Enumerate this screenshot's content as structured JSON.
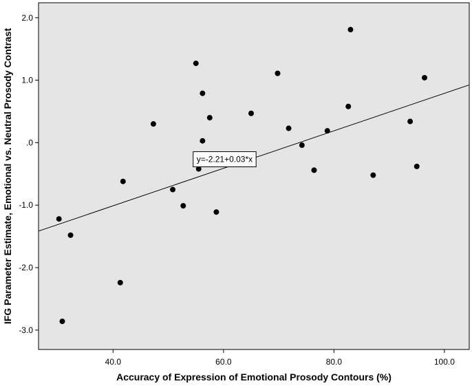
{
  "chart_data": {
    "type": "scatter",
    "xlabel": "Accuracy of Expression of Emotional Prosody Contours (%)",
    "ylabel": "IFG Parameter Estimate, Emotional vs. Neutral Prosody Contrast",
    "xlim": [
      26.5,
      104.5
    ],
    "ylim": [
      -3.31,
      2.24
    ],
    "x_ticks": [
      40,
      60,
      80,
      100
    ],
    "x_tick_labels": [
      "40.0",
      "60.0",
      "80.0",
      "100.0"
    ],
    "y_ticks": [
      2,
      1,
      0,
      -1,
      -2,
      -3
    ],
    "y_tick_labels": [
      "2.0",
      "1.0",
      ".0",
      "-1.0",
      "-2.0",
      "-3.0"
    ],
    "grid": false,
    "background": "#e5e5e5",
    "point_color": "#000000",
    "points": [
      {
        "x": 30.2,
        "y": -1.22
      },
      {
        "x": 30.8,
        "y": -2.86
      },
      {
        "x": 32.3,
        "y": -1.48
      },
      {
        "x": 41.3,
        "y": -2.24
      },
      {
        "x": 41.8,
        "y": -0.62
      },
      {
        "x": 47.3,
        "y": 0.3
      },
      {
        "x": 50.8,
        "y": -0.75
      },
      {
        "x": 52.7,
        "y": -1.01
      },
      {
        "x": 55.0,
        "y": 1.27
      },
      {
        "x": 55.5,
        "y": -0.42
      },
      {
        "x": 56.2,
        "y": 0.79
      },
      {
        "x": 56.2,
        "y": 0.03
      },
      {
        "x": 57.5,
        "y": 0.4
      },
      {
        "x": 58.7,
        "y": -1.11
      },
      {
        "x": 65.0,
        "y": 0.47
      },
      {
        "x": 69.8,
        "y": 1.11
      },
      {
        "x": 71.8,
        "y": 0.23
      },
      {
        "x": 74.2,
        "y": -0.04
      },
      {
        "x": 76.4,
        "y": -0.44
      },
      {
        "x": 78.8,
        "y": 0.19
      },
      {
        "x": 82.6,
        "y": 0.58
      },
      {
        "x": 83.0,
        "y": 1.81
      },
      {
        "x": 87.1,
        "y": -0.52
      },
      {
        "x": 93.8,
        "y": 0.34
      },
      {
        "x": 95.0,
        "y": -0.38
      },
      {
        "x": 96.4,
        "y": 1.04
      }
    ],
    "fit_line": {
      "intercept": -2.21,
      "slope": 0.03
    },
    "annotation": {
      "text": "y=-2.21+0.03*x",
      "x": 60.2,
      "y": -0.265
    }
  }
}
